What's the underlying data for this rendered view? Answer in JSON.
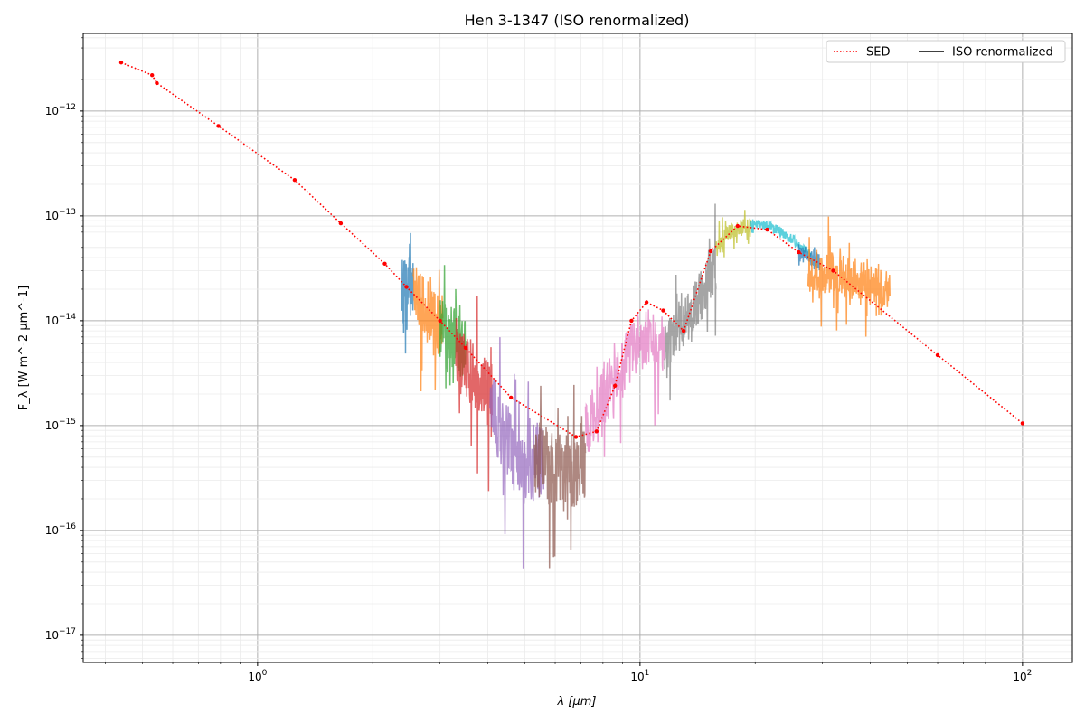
{
  "chart_data": {
    "type": "line",
    "title": "Hen 3-1347 (ISO renormalized)",
    "xlabel": "λ [μm]",
    "ylabel": "F_λ [W m^-2 μm^-1]",
    "xscale": "log",
    "yscale": "log",
    "xlim": [
      0.35,
      135
    ],
    "ylim": [
      5.5e-18,
      5.5e-12
    ],
    "x_ticks": [
      {
        "value": 1,
        "label": "10",
        "exp": "0"
      },
      {
        "value": 10,
        "label": "10",
        "exp": "1"
      },
      {
        "value": 100,
        "label": "10",
        "exp": "2"
      }
    ],
    "y_ticks": [
      {
        "value": 1e-17,
        "label": "10",
        "exp": "−17"
      },
      {
        "value": 1e-16,
        "label": "10",
        "exp": "−16"
      },
      {
        "value": 1e-15,
        "label": "10",
        "exp": "−15"
      },
      {
        "value": 1e-14,
        "label": "10",
        "exp": "−14"
      },
      {
        "value": 1e-13,
        "label": "10",
        "exp": "−13"
      },
      {
        "value": 1e-12,
        "label": "10",
        "exp": "−12"
      }
    ],
    "grid": "major and minor",
    "legend": {
      "placement": "top-right",
      "entries": [
        {
          "name": "SED",
          "style": "dotted",
          "color": "#ff0000"
        },
        {
          "name": "ISO renormalized",
          "style": "solid",
          "color": "#000000"
        }
      ]
    },
    "sed": {
      "name": "SED",
      "color": "#ff0000",
      "points": [
        [
          0.44,
          2.9e-12
        ],
        [
          0.53,
          2.2e-12
        ],
        [
          0.545,
          1.85e-12
        ],
        [
          0.79,
          7.2e-13
        ],
        [
          1.25,
          2.2e-13
        ],
        [
          1.65,
          8.5e-14
        ],
        [
          2.15,
          3.5e-14
        ],
        [
          2.45,
          2.1e-14
        ],
        [
          3.0,
          1e-14
        ],
        [
          3.5,
          5.5e-15
        ],
        [
          4.6,
          1.85e-15
        ],
        [
          6.8,
          7.8e-16
        ],
        [
          7.7,
          8.8e-16
        ],
        [
          8.6,
          2.4e-15
        ],
        [
          9.5,
          1e-14
        ],
        [
          10.4,
          1.5e-14
        ],
        [
          11.5,
          1.25e-14
        ],
        [
          13.0,
          8e-15
        ],
        [
          15.3,
          4.6e-14
        ],
        [
          18.0,
          8e-14
        ],
        [
          21.5,
          7.4e-14
        ],
        [
          26.0,
          4.5e-14
        ],
        [
          32.0,
          3e-14
        ],
        [
          60.0,
          4.7e-15
        ],
        [
          100.0,
          1.05e-15
        ]
      ]
    },
    "iso_segments": [
      {
        "color": "#1f77b4",
        "x_range": [
          2.38,
          2.55
        ],
        "base": [
          [
            2.38,
            2.2e-14
          ],
          [
            2.45,
            2.4e-14
          ],
          [
            2.55,
            1.9e-14
          ]
        ],
        "noise": 0.55,
        "n": 50,
        "seed": 1
      },
      {
        "color": "#ff7f0e",
        "x_range": [
          2.55,
          3.05
        ],
        "base": [
          [
            2.55,
            1.8e-14
          ],
          [
            2.8,
            1.2e-14
          ],
          [
            3.05,
            8e-15
          ]
        ],
        "noise": 0.6,
        "n": 90,
        "seed": 2
      },
      {
        "color": "#2ca02c",
        "x_range": [
          3.0,
          3.5
        ],
        "base": [
          [
            3.0,
            9e-15
          ],
          [
            3.25,
            7e-15
          ],
          [
            3.5,
            5e-15
          ]
        ],
        "noise": 0.6,
        "n": 80,
        "seed": 3
      },
      {
        "color": "#d62728",
        "x_range": [
          3.3,
          4.1
        ],
        "base": [
          [
            3.3,
            5.5e-15
          ],
          [
            3.7,
            2.8e-15
          ],
          [
            4.1,
            1.8e-15
          ]
        ],
        "noise": 0.62,
        "n": 110,
        "seed": 4
      },
      {
        "color": "#9467bd",
        "x_range": [
          4.05,
          5.6
        ],
        "base": [
          [
            4.05,
            1.6e-15
          ],
          [
            4.6,
            6e-16
          ],
          [
            5.1,
            4e-16
          ],
          [
            5.6,
            5e-16
          ]
        ],
        "noise": 0.75,
        "n": 150,
        "seed": 5
      },
      {
        "color": "#8c564b",
        "x_range": [
          5.3,
          7.2
        ],
        "base": [
          [
            5.3,
            5e-16
          ],
          [
            6.2,
            3.5e-16
          ],
          [
            7.2,
            4.5e-16
          ]
        ],
        "noise": 0.75,
        "n": 150,
        "seed": 6
      },
      {
        "color": "#e377c2",
        "x_range": [
          7.2,
          11.6
        ],
        "base": [
          [
            7.2,
            9e-16
          ],
          [
            8.3,
            2.2e-15
          ],
          [
            9.5,
            5e-15
          ],
          [
            10.4,
            7.5e-15
          ],
          [
            11.6,
            5.5e-15
          ]
        ],
        "noise": 0.6,
        "n": 200,
        "seed": 7
      },
      {
        "color": "#7f7f7f",
        "x_range": [
          11.6,
          15.8
        ],
        "base": [
          [
            11.6,
            5.5e-15
          ],
          [
            12.5,
            8e-15
          ],
          [
            13.5,
            1.2e-14
          ],
          [
            15.0,
            2.2e-14
          ],
          [
            15.8,
            3.5e-14
          ]
        ],
        "noise": 0.5,
        "n": 180,
        "seed": 8
      },
      {
        "color": "#bcbd22",
        "x_range": [
          15.8,
          19.5
        ],
        "base": [
          [
            15.8,
            5e-14
          ],
          [
            17.0,
            6.8e-14
          ],
          [
            18.5,
            8e-14
          ],
          [
            19.5,
            8e-14
          ]
        ],
        "noise": 0.15,
        "n": 120,
        "seed": 9
      },
      {
        "color": "#17becf",
        "x_range": [
          19.5,
          28.0
        ],
        "base": [
          [
            19.5,
            8.5e-14
          ],
          [
            22.0,
            8e-14
          ],
          [
            25.0,
            6e-14
          ],
          [
            28.0,
            4.2e-14
          ]
        ],
        "noise": 0.09,
        "n": 160,
        "seed": 10
      },
      {
        "color": "#1f77b4",
        "x_range": [
          26.0,
          29.5
        ],
        "base": [
          [
            26.0,
            4.5e-14
          ],
          [
            28.0,
            4e-14
          ],
          [
            29.5,
            3.6e-14
          ]
        ],
        "noise": 0.18,
        "n": 60,
        "seed": 11
      },
      {
        "color": "#ff7f0e",
        "x_range": [
          27.5,
          45.0
        ],
        "base": [
          [
            27.5,
            3e-14
          ],
          [
            33.0,
            2.8e-14
          ],
          [
            40.0,
            2.2e-14
          ],
          [
            45.0,
            2e-14
          ]
        ],
        "noise": 0.4,
        "n": 260,
        "seed": 12
      }
    ]
  }
}
